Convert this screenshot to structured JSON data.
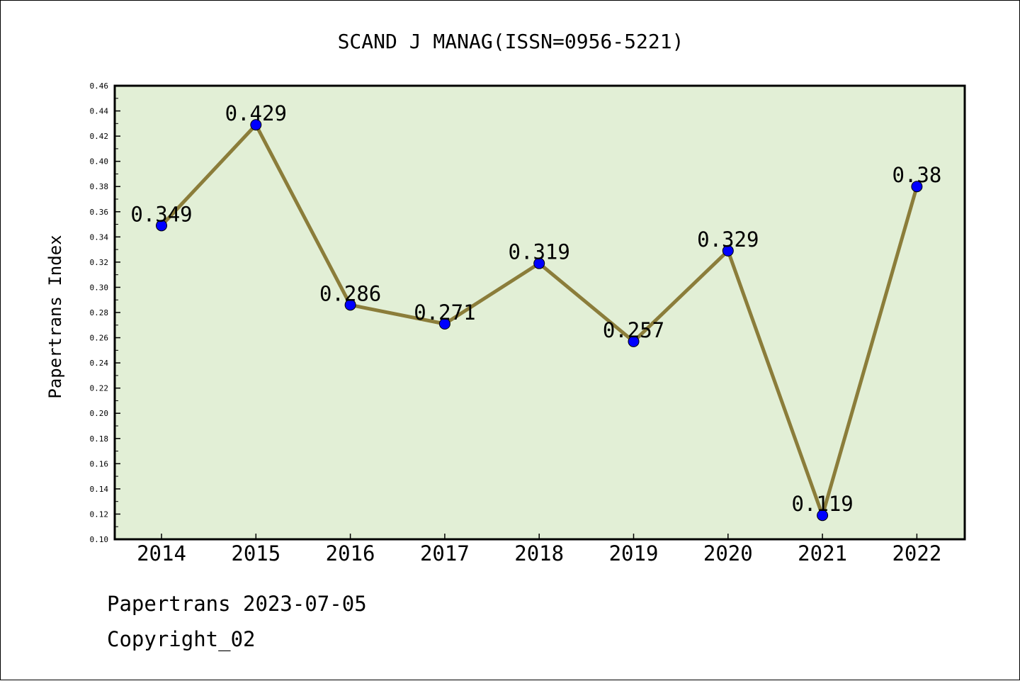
{
  "chart_data": {
    "type": "line",
    "title": "SCAND J MANAG(ISSN=0956-5221)",
    "xlabel": "",
    "ylabel": "Papertrans Index",
    "categories": [
      "2014",
      "2015",
      "2016",
      "2017",
      "2018",
      "2019",
      "2020",
      "2021",
      "2022"
    ],
    "values": [
      0.349,
      0.429,
      0.286,
      0.271,
      0.319,
      0.257,
      0.329,
      0.119,
      0.38
    ],
    "data_labels": [
      "0.349",
      "0.429",
      "0.286",
      "0.271",
      "0.319",
      "0.257",
      "0.329",
      "0.119",
      "0.38"
    ],
    "ylim": [
      0.1,
      0.46
    ],
    "yticks": [
      "0.10",
      "0.12",
      "0.14",
      "0.16",
      "0.18",
      "0.20",
      "0.22",
      "0.24",
      "0.26",
      "0.28",
      "0.30",
      "0.32",
      "0.34",
      "0.36",
      "0.38",
      "0.40",
      "0.42",
      "0.44",
      "0.46"
    ],
    "grid": false,
    "legend": "none",
    "colors": {
      "plot_background": "#e2efd6",
      "line": "#8b7d3a",
      "marker": "#0000ff",
      "axis": "#000000"
    }
  },
  "footer": {
    "source": "Papertrans 2023-07-05",
    "copyright": "Copyright_02"
  }
}
